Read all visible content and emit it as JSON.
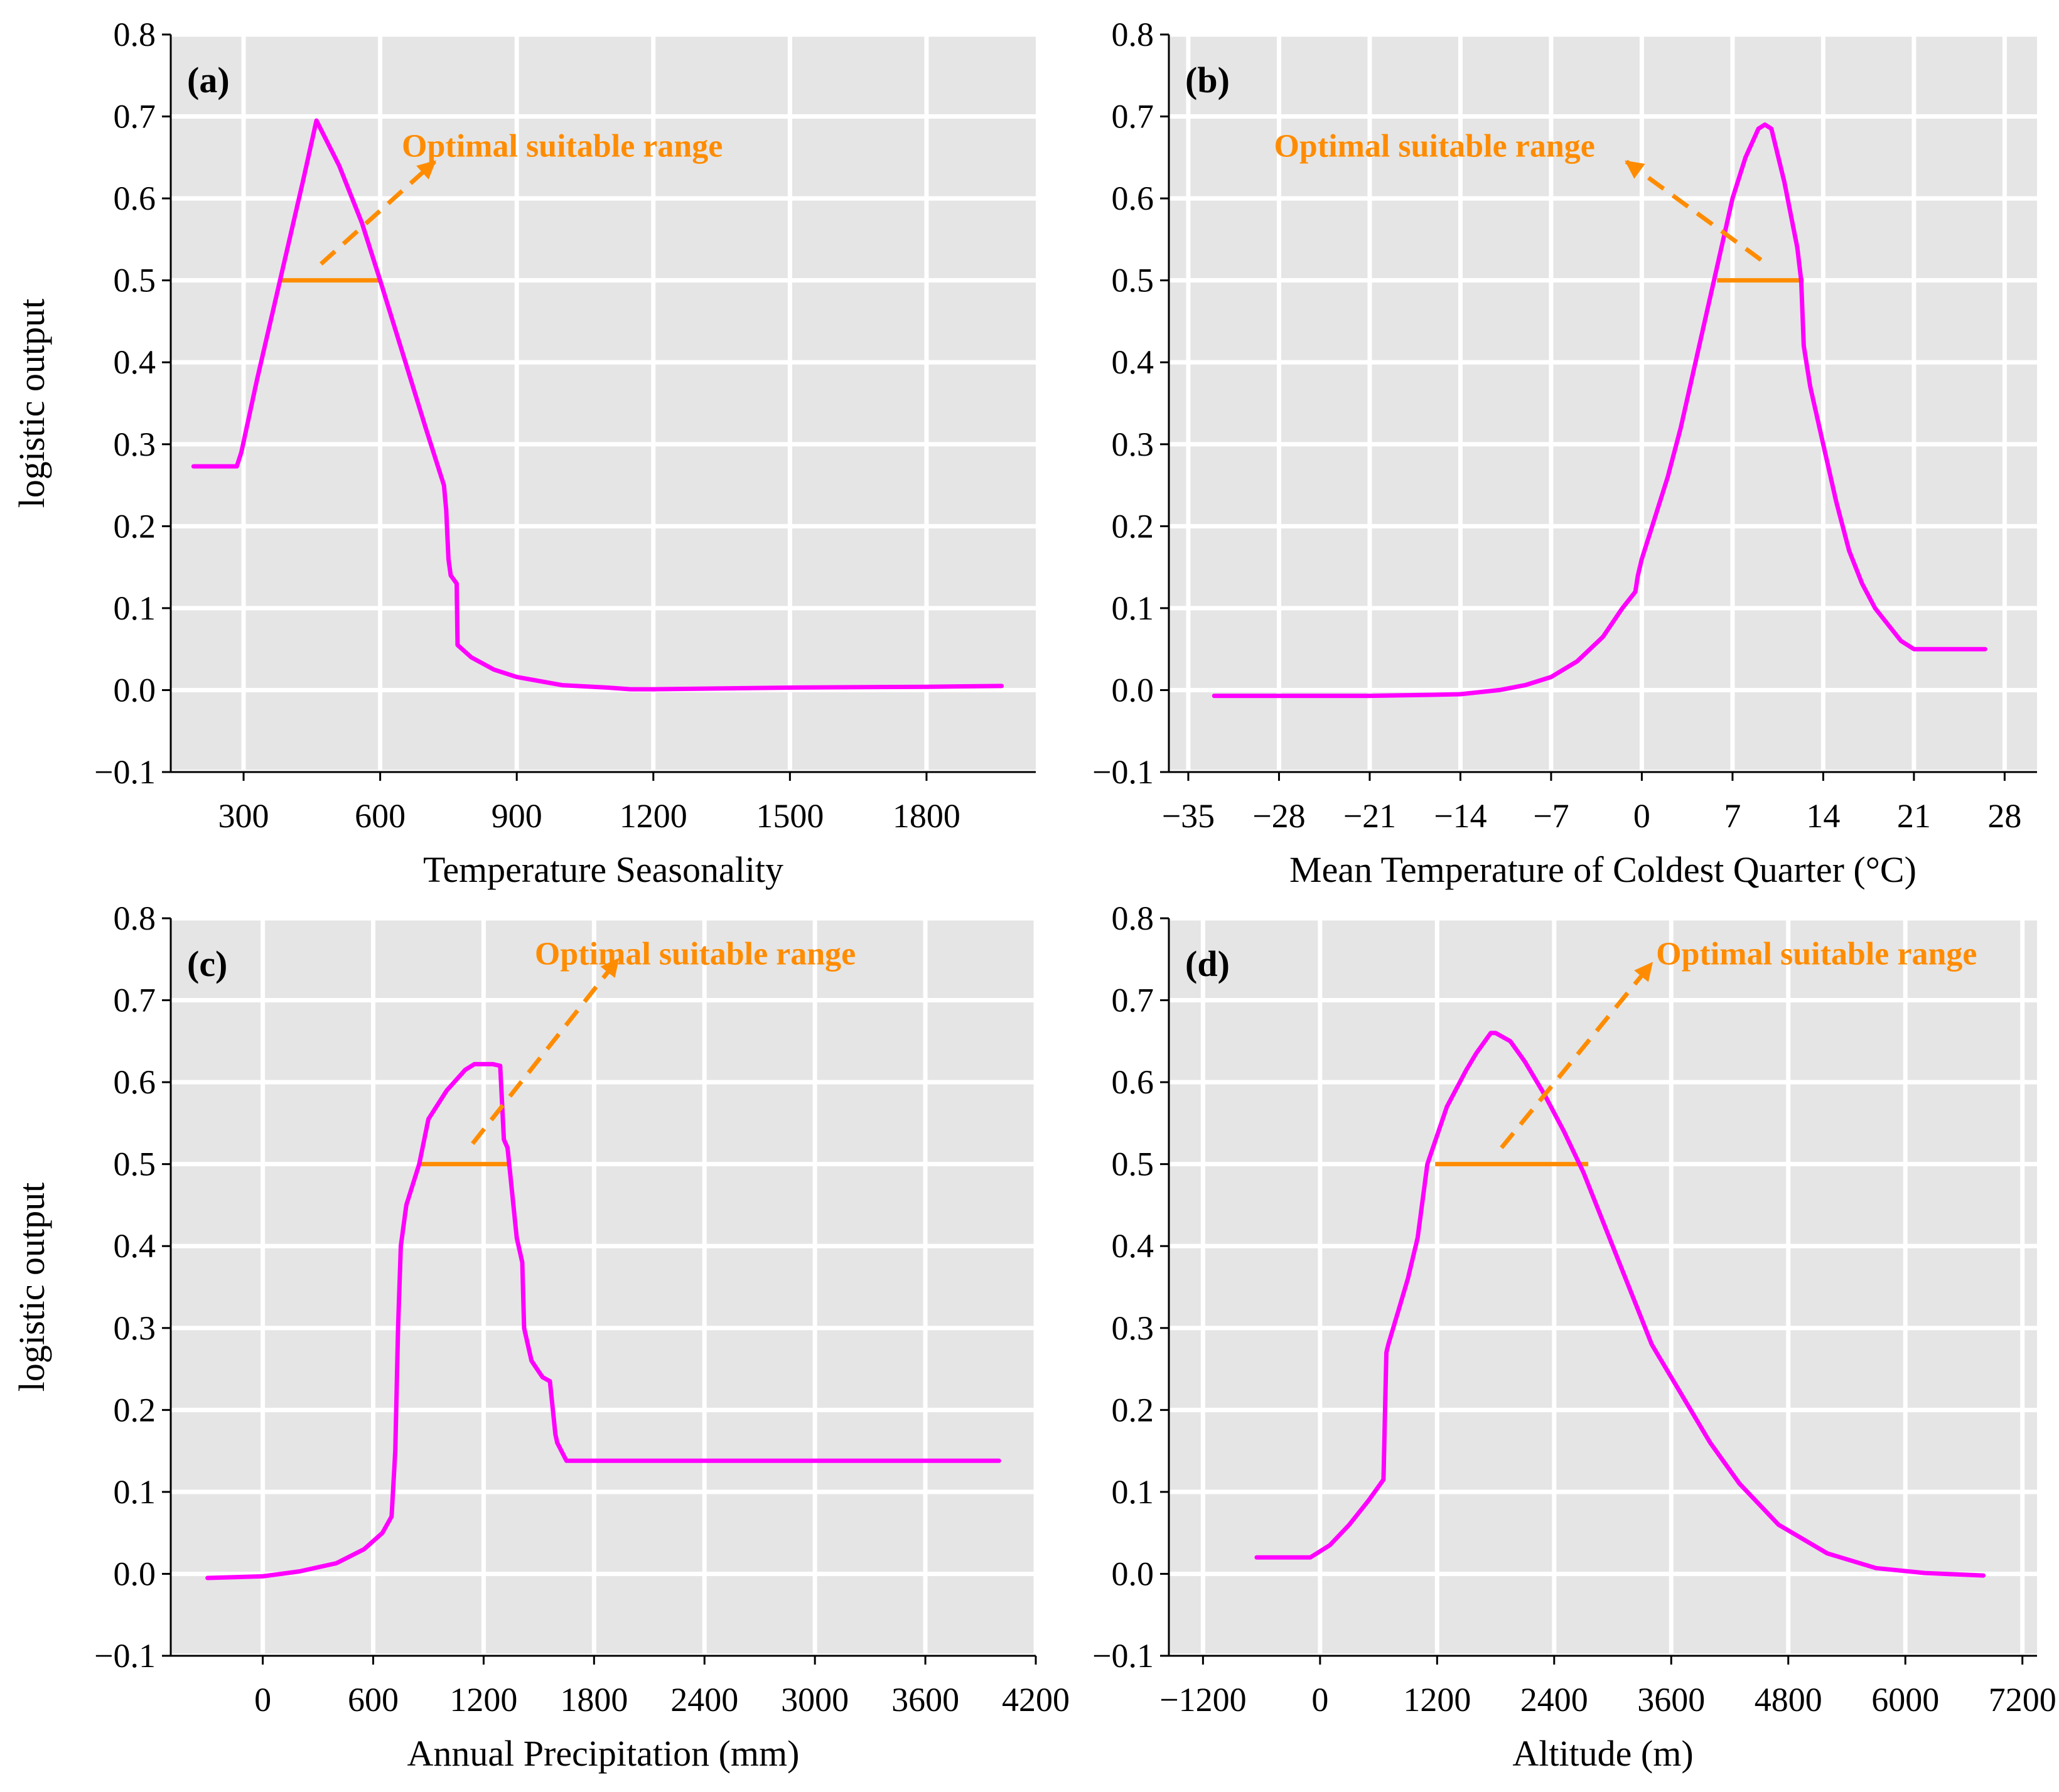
{
  "colors": {
    "background": "#e5e5e5",
    "grid": "#ffffff",
    "curve": "#ff00ff",
    "annotation": "#ff8c00",
    "text": "#000000"
  },
  "chart_data": [
    {
      "type": "line",
      "panel_label": "(a)",
      "xlabel": "Temperature Seasonality",
      "ylabel": "logistic output",
      "xlim": [
        140,
        2040
      ],
      "ylim": [
        -0.1,
        0.8
      ],
      "xticks": [
        300,
        600,
        900,
        1200,
        1500,
        1800
      ],
      "xtick_labels": [
        "300",
        "600",
        "900",
        "1200",
        "1500",
        "1800"
      ],
      "yticks": [
        -0.1,
        0.0,
        0.1,
        0.2,
        0.3,
        0.4,
        0.5,
        0.6,
        0.7,
        0.8
      ],
      "ytick_labels": [
        "−0.1",
        "0.0",
        "0.1",
        "0.2",
        "0.3",
        "0.4",
        "0.5",
        "0.6",
        "0.7",
        "0.8"
      ],
      "series": [
        {
          "name": "response",
          "x": [
            190,
            285,
            295,
            330,
            380,
            430,
            460,
            510,
            560,
            600,
            650,
            700,
            740,
            745,
            750,
            755,
            768,
            770,
            800,
            850,
            900,
            1000,
            1100,
            1150,
            1200,
            1500,
            1800,
            1965
          ],
          "y": [
            0.273,
            0.273,
            0.29,
            0.38,
            0.5,
            0.62,
            0.695,
            0.64,
            0.57,
            0.5,
            0.41,
            0.32,
            0.25,
            0.22,
            0.16,
            0.14,
            0.13,
            0.055,
            0.04,
            0.025,
            0.016,
            0.006,
            0.003,
            0.001,
            0.001,
            0.003,
            0.004,
            0.005
          ]
        }
      ],
      "optimal_range": {
        "x_start": 380,
        "x_end": 600,
        "y": 0.5
      },
      "annotation": {
        "text": "Optimal suitable range",
        "arrow_from": [
          470,
          0.52
        ],
        "arrow_to": [
          720,
          0.645
        ],
        "text_position": [
          1000,
          0.66
        ]
      }
    },
    {
      "type": "line",
      "panel_label": "(b)",
      "xlabel": "Mean Temperature of Coldest Quarter (°C)",
      "ylabel": "",
      "xlim": [
        -36.5,
        30.5
      ],
      "ylim": [
        -0.1,
        0.8
      ],
      "xticks": [
        -35,
        -28,
        -21,
        -14,
        -7,
        0,
        7,
        14,
        21,
        28
      ],
      "xtick_labels": [
        "−35",
        "−28",
        "−21",
        "−14",
        "−7",
        "0",
        "7",
        "14",
        "21",
        "28"
      ],
      "yticks": [
        -0.1,
        0.0,
        0.1,
        0.2,
        0.3,
        0.4,
        0.5,
        0.6,
        0.7,
        0.8
      ],
      "ytick_labels": [
        "−0.1",
        "0.0",
        "0.1",
        "0.2",
        "0.3",
        "0.4",
        "0.5",
        "0.6",
        "0.7",
        "0.8"
      ],
      "series": [
        {
          "name": "response",
          "x": [
            -33,
            -28,
            -21,
            -17,
            -14,
            -11,
            -9,
            -7,
            -5,
            -3,
            -1.5,
            -0.5,
            -0.3,
            0,
            1,
            2,
            3,
            4,
            5,
            6,
            7,
            8,
            9,
            9.5,
            10,
            11,
            11.5,
            12,
            12.3,
            12.5,
            13,
            14,
            15,
            16,
            17,
            18,
            19,
            20,
            21,
            24,
            26.5
          ],
          "y": [
            -0.007,
            -0.007,
            -0.007,
            -0.006,
            -0.005,
            0.0,
            0.006,
            0.016,
            0.035,
            0.065,
            0.1,
            0.12,
            0.14,
            0.16,
            0.21,
            0.26,
            0.32,
            0.39,
            0.46,
            0.53,
            0.6,
            0.65,
            0.685,
            0.69,
            0.685,
            0.62,
            0.58,
            0.54,
            0.5,
            0.42,
            0.37,
            0.3,
            0.23,
            0.17,
            0.13,
            0.1,
            0.08,
            0.06,
            0.05,
            0.05,
            0.05
          ]
        }
      ],
      "optimal_range": {
        "x_start": 5.8,
        "x_end": 12.5,
        "y": 0.5
      },
      "annotation": {
        "text": "Optimal suitable range",
        "arrow_from": [
          9.2,
          0.525
        ],
        "arrow_to": [
          -1.2,
          0.645
        ],
        "text_position": [
          -16,
          0.66
        ]
      }
    },
    {
      "type": "line",
      "panel_label": "(c)",
      "xlabel": "Annual Precipitation (mm)",
      "ylabel": "logistic output",
      "xlim": [
        -500,
        4200
      ],
      "ylim": [
        -0.1,
        0.8
      ],
      "xticks": [
        0,
        600,
        1200,
        1800,
        2400,
        3000,
        3600,
        4200
      ],
      "xtick_labels": [
        "0",
        "600",
        "1200",
        "1800",
        "2400",
        "3000",
        "3600",
        "4200"
      ],
      "yticks": [
        -0.1,
        0.0,
        0.1,
        0.2,
        0.3,
        0.4,
        0.5,
        0.6,
        0.7,
        0.8
      ],
      "ytick_labels": [
        "−0.1",
        "0.0",
        "0.1",
        "0.2",
        "0.3",
        "0.4",
        "0.5",
        "0.6",
        "0.7",
        "0.8"
      ],
      "series": [
        {
          "name": "response",
          "x": [
            -300,
            0,
            200,
            400,
            550,
            650,
            700,
            720,
            735,
            750,
            780,
            850,
            900,
            1000,
            1100,
            1150,
            1250,
            1290,
            1310,
            1330,
            1380,
            1410,
            1420,
            1460,
            1520,
            1560,
            1590,
            1600,
            1650,
            2000,
            4000
          ],
          "y": [
            -0.005,
            -0.003,
            0.003,
            0.013,
            0.03,
            0.05,
            0.07,
            0.15,
            0.3,
            0.4,
            0.45,
            0.5,
            0.555,
            0.59,
            0.615,
            0.622,
            0.622,
            0.62,
            0.53,
            0.52,
            0.41,
            0.38,
            0.3,
            0.26,
            0.24,
            0.235,
            0.17,
            0.16,
            0.138,
            0.138,
            0.138
          ]
        }
      ],
      "optimal_range": {
        "x_start": 860,
        "x_end": 1330,
        "y": 0.5
      },
      "annotation": {
        "text": "Optimal suitable range",
        "arrow_from": [
          1140,
          0.525
        ],
        "arrow_to": [
          1930,
          0.75
        ],
        "text_position": [
          2350,
          0.753
        ]
      }
    },
    {
      "type": "line",
      "panel_label": "(d)",
      "xlabel": "Altitude (m)",
      "ylabel": "",
      "xlim": [
        -1550,
        7350
      ],
      "ylim": [
        -0.1,
        0.8
      ],
      "xticks": [
        -1200,
        0,
        1200,
        2400,
        3600,
        4800,
        6000,
        7200
      ],
      "xtick_labels": [
        "−1200",
        "0",
        "1200",
        "2400",
        "3600",
        "4800",
        "6000",
        "7200"
      ],
      "yticks": [
        -0.1,
        0.0,
        0.1,
        0.2,
        0.3,
        0.4,
        0.5,
        0.6,
        0.7,
        0.8
      ],
      "ytick_labels": [
        "−0.1",
        "0.0",
        "0.1",
        "0.2",
        "0.3",
        "0.4",
        "0.5",
        "0.6",
        "0.7",
        "0.8"
      ],
      "series": [
        {
          "name": "response",
          "x": [
            -650,
            -100,
            100,
            300,
            500,
            650,
            680,
            700,
            750,
            800,
            900,
            1000,
            1100,
            1300,
            1500,
            1600,
            1750,
            1800,
            1950,
            2100,
            2300,
            2500,
            2700,
            2900,
            3100,
            3300,
            3400,
            3500,
            3700,
            4000,
            4300,
            4700,
            5200,
            5700,
            6200,
            6800
          ],
          "y": [
            0.02,
            0.02,
            0.035,
            0.06,
            0.09,
            0.115,
            0.27,
            0.28,
            0.3,
            0.32,
            0.36,
            0.41,
            0.5,
            0.57,
            0.615,
            0.635,
            0.66,
            0.66,
            0.65,
            0.625,
            0.585,
            0.54,
            0.49,
            0.43,
            0.37,
            0.31,
            0.28,
            0.26,
            0.22,
            0.16,
            0.11,
            0.06,
            0.025,
            0.007,
            0.001,
            -0.002
          ]
        }
      ],
      "optimal_range": {
        "x_start": 1180,
        "x_end": 2750,
        "y": 0.5
      },
      "annotation": {
        "text": "Optimal suitable range",
        "arrow_from": [
          1860,
          0.52
        ],
        "arrow_to": [
          3400,
          0.745
        ],
        "text_position": [
          5090,
          0.753
        ]
      }
    }
  ]
}
